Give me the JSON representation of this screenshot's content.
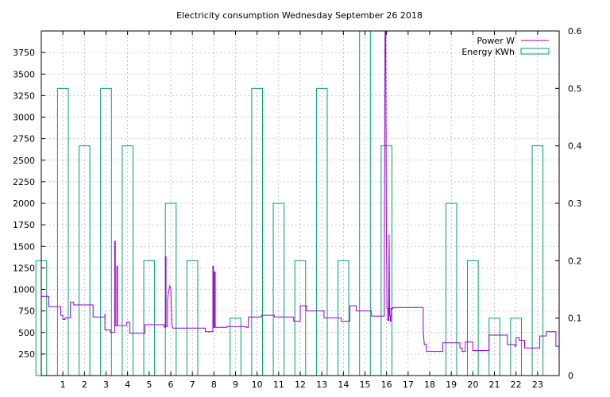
{
  "chart_data": {
    "type": "bar",
    "title": "Electricity consumption Wednesday September 26 2018",
    "xlabel": "",
    "ylabel": "",
    "y2label": "",
    "xlim": [
      0,
      24
    ],
    "ylim": [
      0,
      4000
    ],
    "y2lim": [
      0,
      0.6
    ],
    "x_ticks": [
      "1",
      "2",
      "3",
      "4",
      "5",
      "6",
      "7",
      "8",
      "9",
      "10",
      "11",
      "12",
      "13",
      "14",
      "15",
      "16",
      "17",
      "18",
      "19",
      "20",
      "21",
      "22",
      "23"
    ],
    "y_ticks": [
      "250",
      "500",
      "750",
      "1000",
      "1250",
      "1500",
      "1750",
      "2000",
      "2250",
      "2500",
      "2750",
      "3000",
      "3250",
      "3500",
      "3750"
    ],
    "y2_ticks": [
      "0",
      "0.1",
      "0.2",
      "0.3",
      "0.4",
      "0.5",
      "0.6"
    ],
    "grid": true,
    "legend_position": "top-right",
    "series": [
      {
        "name": "Energy KWh",
        "kind": "bars",
        "axis": "y2",
        "color": "#009e73",
        "x": [
          0,
          1,
          2,
          3,
          4,
          5,
          6,
          7,
          8,
          9,
          10,
          11,
          12,
          13,
          14,
          15,
          16,
          17,
          18,
          19,
          20,
          21,
          22,
          23
        ],
        "values": [
          0.2,
          0.5,
          0.4,
          0.5,
          0.4,
          0.2,
          0.3,
          0.2,
          0,
          0.1,
          0.5,
          0.3,
          0.2,
          0.5,
          0.2,
          0.6,
          0.4,
          0,
          0,
          0.3,
          0.2,
          0.1,
          0.1,
          0.4
        ]
      },
      {
        "name": "Power W",
        "kind": "line",
        "axis": "y",
        "color": "#9400d3",
        "points": [
          [
            0,
            920
          ],
          [
            0.35,
            920
          ],
          [
            0.35,
            800
          ],
          [
            0.9,
            800
          ],
          [
            0.9,
            700
          ],
          [
            1.0,
            700
          ],
          [
            1.0,
            650
          ],
          [
            1.1,
            650
          ],
          [
            1.1,
            670
          ],
          [
            1.35,
            670
          ],
          [
            1.35,
            850
          ],
          [
            1.5,
            850
          ],
          [
            1.5,
            820
          ],
          [
            2.4,
            820
          ],
          [
            2.4,
            680
          ],
          [
            2.95,
            680
          ],
          [
            2.95,
            720
          ],
          [
            2.95,
            530
          ],
          [
            3.2,
            530
          ],
          [
            3.2,
            500
          ],
          [
            3.4,
            500
          ],
          [
            3.4,
            1560
          ],
          [
            3.43,
            1560
          ],
          [
            3.43,
            580
          ],
          [
            3.5,
            580
          ],
          [
            3.5,
            1270
          ],
          [
            3.53,
            1270
          ],
          [
            3.53,
            580
          ],
          [
            3.95,
            580
          ],
          [
            3.95,
            620
          ],
          [
            4.1,
            620
          ],
          [
            4.1,
            490
          ],
          [
            4.8,
            490
          ],
          [
            4.8,
            590
          ],
          [
            5.7,
            590
          ],
          [
            5.7,
            560
          ],
          [
            5.75,
            560
          ],
          [
            5.75,
            1380
          ],
          [
            5.78,
            1380
          ],
          [
            5.78,
            570
          ],
          [
            5.85,
            570
          ],
          [
            5.85,
            880
          ],
          [
            5.9,
            980
          ],
          [
            5.95,
            1040
          ],
          [
            6.0,
            1010
          ],
          [
            6.05,
            600
          ],
          [
            6.1,
            550
          ],
          [
            7.6,
            550
          ],
          [
            7.6,
            510
          ],
          [
            7.95,
            510
          ],
          [
            7.95,
            1270
          ],
          [
            7.98,
            1270
          ],
          [
            7.98,
            560
          ],
          [
            8.03,
            560
          ],
          [
            8.03,
            1200
          ],
          [
            8.06,
            1200
          ],
          [
            8.06,
            560
          ],
          [
            8.6,
            560
          ],
          [
            8.6,
            570
          ],
          [
            9.5,
            570
          ],
          [
            9.5,
            560
          ],
          [
            9.6,
            560
          ],
          [
            9.6,
            680
          ],
          [
            10.2,
            680
          ],
          [
            10.2,
            700
          ],
          [
            10.8,
            700
          ],
          [
            10.8,
            680
          ],
          [
            11.7,
            680
          ],
          [
            11.7,
            630
          ],
          [
            12.0,
            630
          ],
          [
            12.0,
            810
          ],
          [
            12.3,
            810
          ],
          [
            12.3,
            750
          ],
          [
            13.1,
            750
          ],
          [
            13.1,
            670
          ],
          [
            13.9,
            670
          ],
          [
            13.9,
            630
          ],
          [
            14.3,
            630
          ],
          [
            14.3,
            810
          ],
          [
            14.6,
            810
          ],
          [
            14.6,
            750
          ],
          [
            15.3,
            750
          ],
          [
            15.3,
            690
          ],
          [
            15.9,
            690
          ],
          [
            15.9,
            1490
          ],
          [
            15.93,
            4000
          ],
          [
            15.96,
            4000
          ],
          [
            15.99,
            1700
          ],
          [
            16.01,
            1180
          ],
          [
            16.02,
            780
          ],
          [
            16.06,
            780
          ],
          [
            16.06,
            640
          ],
          [
            16.1,
            640
          ],
          [
            16.1,
            780
          ],
          [
            16.12,
            1640
          ],
          [
            16.14,
            700
          ],
          [
            16.17,
            700
          ],
          [
            16.17,
            630
          ],
          [
            16.2,
            630
          ],
          [
            16.2,
            780
          ],
          [
            16.3,
            780
          ],
          [
            16.3,
            790
          ],
          [
            17.7,
            790
          ],
          [
            17.7,
            520
          ],
          [
            17.75,
            360
          ],
          [
            17.85,
            360
          ],
          [
            17.85,
            280
          ],
          [
            18.6,
            280
          ],
          [
            18.6,
            380
          ],
          [
            19.4,
            380
          ],
          [
            19.4,
            320
          ],
          [
            19.5,
            320
          ],
          [
            19.5,
            280
          ],
          [
            19.65,
            280
          ],
          [
            19.65,
            390
          ],
          [
            20.0,
            390
          ],
          [
            20.0,
            290
          ],
          [
            20.75,
            290
          ],
          [
            20.75,
            470
          ],
          [
            21.6,
            470
          ],
          [
            21.6,
            360
          ],
          [
            21.95,
            360
          ],
          [
            21.95,
            340
          ],
          [
            22.0,
            340
          ],
          [
            22.0,
            440
          ],
          [
            22.15,
            440
          ],
          [
            22.15,
            410
          ],
          [
            22.4,
            410
          ],
          [
            22.4,
            320
          ],
          [
            23.1,
            320
          ],
          [
            23.1,
            460
          ],
          [
            23.4,
            460
          ],
          [
            23.4,
            510
          ],
          [
            23.85,
            510
          ],
          [
            23.85,
            340
          ],
          [
            24,
            340
          ]
        ]
      }
    ]
  }
}
